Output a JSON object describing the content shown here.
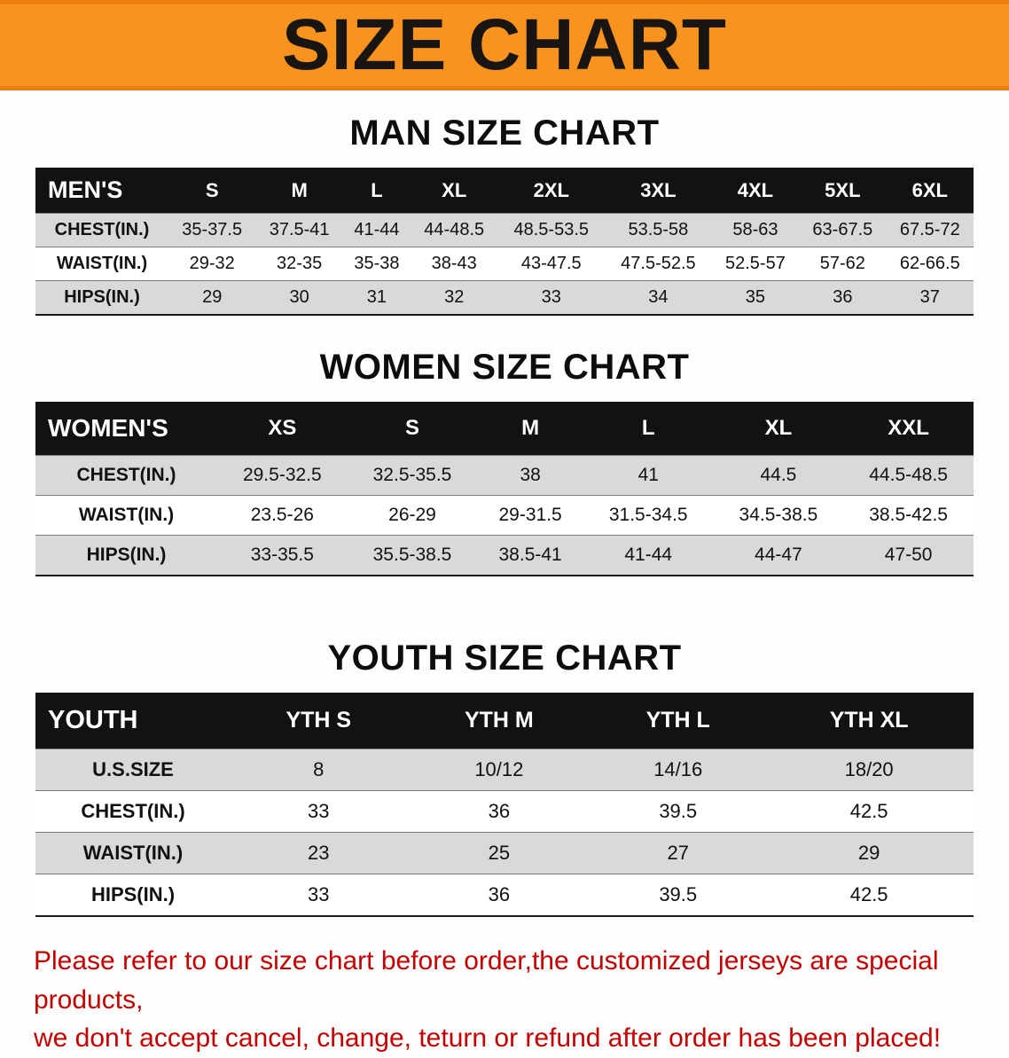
{
  "banner": {
    "title": "SIZE CHART",
    "bg_color": "#F7931E"
  },
  "men": {
    "heading": "MAN SIZE CHART",
    "header": [
      "MEN'S",
      "S",
      "M",
      "L",
      "XL",
      "2XL",
      "3XL",
      "4XL",
      "5XL",
      "6XL"
    ],
    "rows": [
      [
        "CHEST(IN.)",
        "35-37.5",
        "37.5-41",
        "41-44",
        "44-48.5",
        "48.5-53.5",
        "53.5-58",
        "58-63",
        "63-67.5",
        "67.5-72"
      ],
      [
        "WAIST(IN.)",
        "29-32",
        "32-35",
        "35-38",
        "38-43",
        "43-47.5",
        "47.5-52.5",
        "52.5-57",
        "57-62",
        "62-66.5"
      ],
      [
        "HIPS(IN.)",
        "29",
        "30",
        "31",
        "32",
        "33",
        "34",
        "35",
        "36",
        "37"
      ]
    ]
  },
  "women": {
    "heading": "WOMEN SIZE CHART",
    "header": [
      "WOMEN'S",
      "XS",
      "S",
      "M",
      "L",
      "XL",
      "XXL"
    ],
    "rows": [
      [
        "CHEST(IN.)",
        "29.5-32.5",
        "32.5-35.5",
        "38",
        "41",
        "44.5",
        "44.5-48.5"
      ],
      [
        "WAIST(IN.)",
        "23.5-26",
        "26-29",
        "29-31.5",
        "31.5-34.5",
        "34.5-38.5",
        "38.5-42.5"
      ],
      [
        "HIPS(IN.)",
        "33-35.5",
        "35.5-38.5",
        "38.5-41",
        "41-44",
        "44-47",
        "47-50"
      ]
    ]
  },
  "youth": {
    "heading": "YOUTH SIZE CHART",
    "header": [
      "YOUTH",
      "YTH S",
      "YTH M",
      "YTH L",
      "YTH XL"
    ],
    "rows": [
      [
        "U.S.SIZE",
        "8",
        "10/12",
        "14/16",
        "18/20"
      ],
      [
        "CHEST(IN.)",
        "33",
        "36",
        "39.5",
        "42.5"
      ],
      [
        "WAIST(IN.)",
        "23",
        "25",
        "27",
        "29"
      ],
      [
        "HIPS(IN.)",
        "33",
        "36",
        "39.5",
        "42.5"
      ]
    ]
  },
  "footer": {
    "line1": "Please refer to our size chart before order,the customized jerseys are special products,",
    "line2": "we don't accept cancel, change, teturn or refund after order has been placed!",
    "text_color": "#C40000"
  }
}
